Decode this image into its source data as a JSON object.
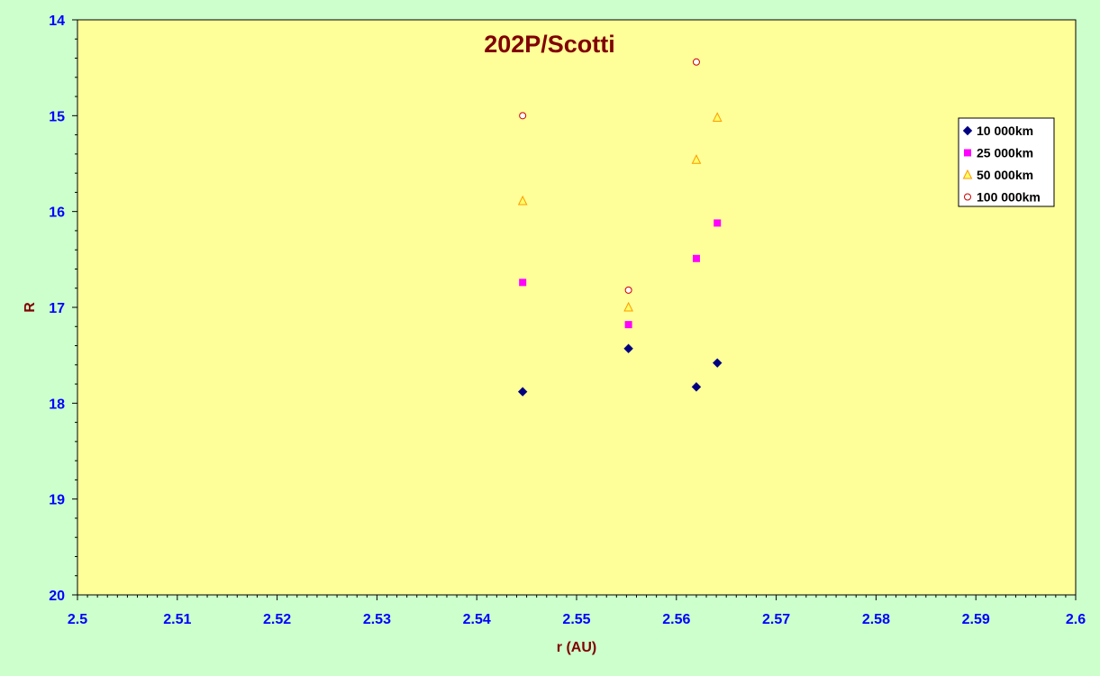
{
  "chart_data": {
    "type": "scatter",
    "title": "202P/Scotti",
    "xlabel": "r (AU)",
    "ylabel": "R",
    "xlim": [
      2.5,
      2.6
    ],
    "ylim": [
      14,
      20
    ],
    "y_inverted": true,
    "x_ticks": [
      "2.5",
      "2.51",
      "2.52",
      "2.53",
      "2.54",
      "2.55",
      "2.56",
      "2.57",
      "2.58",
      "2.59",
      "2.6"
    ],
    "y_ticks": [
      "14",
      "15",
      "16",
      "17",
      "18",
      "19",
      "20"
    ],
    "grid": false,
    "legend_position": "top-right",
    "colors": {
      "plot_background": "#ffff99",
      "chart_background": "#ccffcc",
      "tick_labels": "#0000ff",
      "titles": "#800000"
    },
    "series": [
      {
        "name": "10 000km",
        "marker": "diamond",
        "color": "#000080",
        "points": [
          [
            2.5446,
            17.88
          ],
          [
            2.5552,
            17.43
          ],
          [
            2.562,
            17.83
          ],
          [
            2.5641,
            17.58
          ]
        ]
      },
      {
        "name": "25 000km",
        "marker": "square",
        "color": "#ff00ff",
        "points": [
          [
            2.5446,
            16.74
          ],
          [
            2.5552,
            17.18
          ],
          [
            2.562,
            16.49
          ],
          [
            2.5641,
            16.12
          ]
        ]
      },
      {
        "name": "50 000km",
        "marker": "triangle",
        "color": "#ff9900",
        "points": [
          [
            2.5446,
            15.89
          ],
          [
            2.5552,
            17.0
          ],
          [
            2.562,
            15.46
          ],
          [
            2.5641,
            15.02
          ]
        ]
      },
      {
        "name": "100 000km",
        "marker": "circle",
        "color": "#cc0000",
        "points": [
          [
            2.5446,
            15.0
          ],
          [
            2.5552,
            16.82
          ],
          [
            2.562,
            14.44
          ]
        ]
      }
    ]
  }
}
